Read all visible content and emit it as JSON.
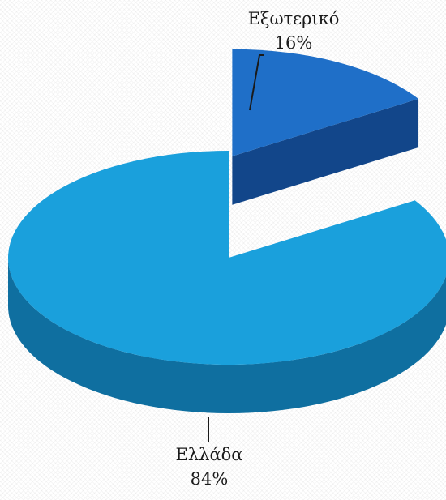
{
  "chart_data": {
    "type": "pie",
    "style": "3d-exploded",
    "slices": [
      {
        "label": "Ελλάδα",
        "value": 84,
        "value_label": "84%",
        "color": "#1aa0dc",
        "side_color": "#0f6fa0"
      },
      {
        "label": "Εξωτερικό",
        "value": 16,
        "value_label": "16%",
        "color": "#1f6fc8",
        "side_color": "#12468a",
        "exploded": true
      }
    ],
    "title": "",
    "legend": "none"
  }
}
